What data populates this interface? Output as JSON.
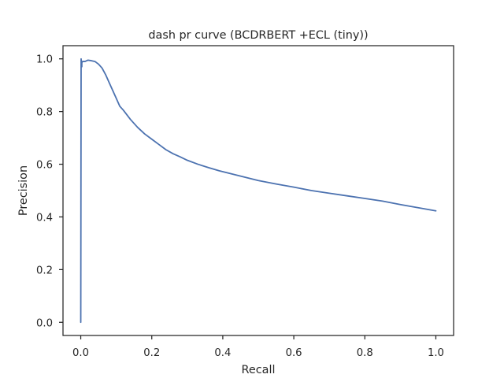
{
  "chart_data": {
    "type": "line",
    "title": "dash pr curve (BCDRBERT +ECL (tiny))",
    "xlabel": "Recall",
    "ylabel": "Precision",
    "xlim": [
      -0.05,
      1.05
    ],
    "ylim": [
      -0.05,
      1.05
    ],
    "xticks": [
      0.0,
      0.2,
      0.4,
      0.6,
      0.8,
      1.0
    ],
    "xtick_labels": [
      "0.0",
      "0.2",
      "0.4",
      "0.6",
      "0.8",
      "1.0"
    ],
    "yticks": [
      0.0,
      0.2,
      0.4,
      0.6,
      0.8,
      1.0
    ],
    "ytick_labels": [
      "0.0",
      "0.2",
      "0.4",
      "0.6",
      "0.8",
      "1.0"
    ],
    "grid": false,
    "series": [
      {
        "color": "#4c72b0",
        "x": [
          0.0,
          0.0,
          0.001,
          0.002,
          0.003,
          0.003,
          0.005,
          0.008,
          0.012,
          0.02,
          0.03,
          0.04,
          0.05,
          0.06,
          0.07,
          0.08,
          0.09,
          0.1,
          0.11,
          0.12,
          0.14,
          0.16,
          0.18,
          0.2,
          0.22,
          0.24,
          0.26,
          0.28,
          0.3,
          0.33,
          0.36,
          0.39,
          0.42,
          0.45,
          0.5,
          0.55,
          0.6,
          0.65,
          0.7,
          0.75,
          0.8,
          0.85,
          0.9,
          0.95,
          1.0
        ],
        "y": [
          0.0,
          0.0,
          1.0,
          0.98,
          0.97,
          0.985,
          0.99,
          0.99,
          0.99,
          0.995,
          0.993,
          0.99,
          0.98,
          0.965,
          0.94,
          0.91,
          0.88,
          0.85,
          0.82,
          0.805,
          0.77,
          0.74,
          0.715,
          0.695,
          0.675,
          0.655,
          0.64,
          0.628,
          0.615,
          0.6,
          0.587,
          0.575,
          0.565,
          0.555,
          0.538,
          0.525,
          0.513,
          0.5,
          0.49,
          0.48,
          0.47,
          0.46,
          0.447,
          0.435,
          0.423
        ]
      }
    ]
  }
}
